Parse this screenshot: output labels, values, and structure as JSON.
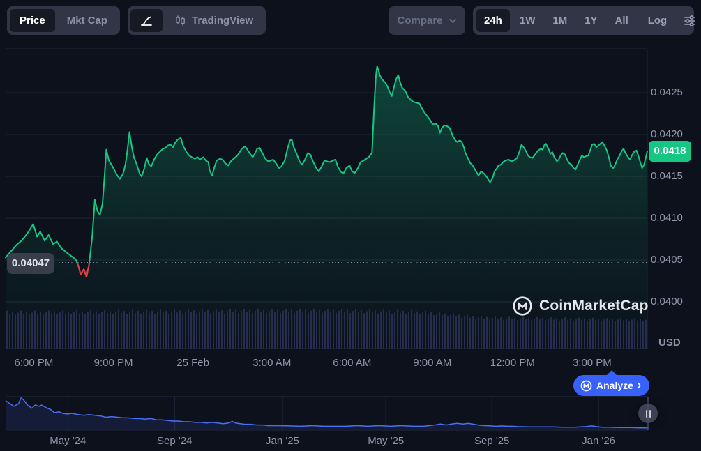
{
  "toolbar": {
    "price_label": "Price",
    "mktcap_label": "Mkt Cap",
    "tradingview_label": "TradingView",
    "compare_label": "Compare",
    "ranges": [
      "24h",
      "1W",
      "1M",
      "1Y",
      "All"
    ],
    "active_range": "24h",
    "log_label": "Log"
  },
  "watermark": {
    "text": "CoinMarketCap"
  },
  "analyze": {
    "label": "Analyze",
    "chevron": "›"
  },
  "chart_data": {
    "type": "line",
    "title": "24h price chart",
    "currency": "USD",
    "line_color": "#16c784",
    "down_color": "#ea3943",
    "grid_color": "#1d2536",
    "ylim": [
      0.039442,
      0.043025
    ],
    "prev_close": 0.04047,
    "prev_close_label": "0.04047",
    "last_price": 0.0418,
    "last_price_label": "0.0418",
    "y_ticks": [
      {
        "label": "0.0425",
        "value": 0.0425
      },
      {
        "label": "0.0420",
        "value": 0.042
      },
      {
        "label": "0.0415",
        "value": 0.0415
      },
      {
        "label": "0.0410",
        "value": 0.041
      },
      {
        "label": "0.0405",
        "value": 0.0405
      },
      {
        "label": "0.0400",
        "value": 0.04
      }
    ],
    "x_ticks": [
      {
        "label": "6:00 PM",
        "f": 0.044
      },
      {
        "label": "9:00 PM",
        "f": 0.168
      },
      {
        "label": "25 Feb",
        "f": 0.292
      },
      {
        "label": "3:00 AM",
        "f": 0.415
      },
      {
        "label": "6:00 AM",
        "f": 0.54
      },
      {
        "label": "9:00 AM",
        "f": 0.665
      },
      {
        "label": "12:00 PM",
        "f": 0.79
      },
      {
        "label": "3:00 PM",
        "f": 0.914
      }
    ],
    "points": [
      [
        0.0,
        0.04053
      ],
      [
        0.009,
        0.04061
      ],
      [
        0.017,
        0.04068
      ],
      [
        0.026,
        0.04074
      ],
      [
        0.035,
        0.04083
      ],
      [
        0.043,
        0.04093
      ],
      [
        0.049,
        0.04078
      ],
      [
        0.054,
        0.04084
      ],
      [
        0.061,
        0.04073
      ],
      [
        0.067,
        0.0408
      ],
      [
        0.074,
        0.04069
      ],
      [
        0.08,
        0.04072
      ],
      [
        0.087,
        0.04064
      ],
      [
        0.095,
        0.04059
      ],
      [
        0.102,
        0.04055
      ],
      [
        0.109,
        0.04051
      ],
      [
        0.113,
        0.04044
      ],
      [
        0.117,
        0.04033
      ],
      [
        0.122,
        0.04039
      ],
      [
        0.126,
        0.0403
      ],
      [
        0.13,
        0.04044
      ],
      [
        0.135,
        0.04078
      ],
      [
        0.139,
        0.04122
      ],
      [
        0.143,
        0.04109
      ],
      [
        0.147,
        0.04104
      ],
      [
        0.151,
        0.04117
      ],
      [
        0.154,
        0.04148
      ],
      [
        0.157,
        0.04182
      ],
      [
        0.161,
        0.04169
      ],
      [
        0.165,
        0.04164
      ],
      [
        0.17,
        0.04157
      ],
      [
        0.174,
        0.04151
      ],
      [
        0.178,
        0.04147
      ],
      [
        0.183,
        0.04153
      ],
      [
        0.187,
        0.04165
      ],
      [
        0.19,
        0.04182
      ],
      [
        0.193,
        0.04203
      ],
      [
        0.197,
        0.04184
      ],
      [
        0.2,
        0.04173
      ],
      [
        0.204,
        0.04165
      ],
      [
        0.209,
        0.04153
      ],
      [
        0.212,
        0.0415
      ],
      [
        0.216,
        0.04159
      ],
      [
        0.22,
        0.04172
      ],
      [
        0.223,
        0.04165
      ],
      [
        0.227,
        0.04162
      ],
      [
        0.232,
        0.04171
      ],
      [
        0.236,
        0.04176
      ],
      [
        0.24,
        0.04179
      ],
      [
        0.245,
        0.04183
      ],
      [
        0.249,
        0.04184
      ],
      [
        0.253,
        0.04187
      ],
      [
        0.257,
        0.04188
      ],
      [
        0.261,
        0.04185
      ],
      [
        0.264,
        0.0419
      ],
      [
        0.268,
        0.04194
      ],
      [
        0.273,
        0.04196
      ],
      [
        0.277,
        0.04186
      ],
      [
        0.282,
        0.04179
      ],
      [
        0.286,
        0.04175
      ],
      [
        0.29,
        0.04173
      ],
      [
        0.295,
        0.04171
      ],
      [
        0.299,
        0.04173
      ],
      [
        0.303,
        0.0417
      ],
      [
        0.308,
        0.04173
      ],
      [
        0.312,
        0.04169
      ],
      [
        0.316,
        0.04167
      ],
      [
        0.318,
        0.04157
      ],
      [
        0.322,
        0.04151
      ],
      [
        0.325,
        0.0416
      ],
      [
        0.329,
        0.04169
      ],
      [
        0.334,
        0.04171
      ],
      [
        0.338,
        0.0417
      ],
      [
        0.342,
        0.04166
      ],
      [
        0.347,
        0.04163
      ],
      [
        0.351,
        0.04168
      ],
      [
        0.355,
        0.04171
      ],
      [
        0.36,
        0.04174
      ],
      [
        0.364,
        0.04178
      ],
      [
        0.368,
        0.04183
      ],
      [
        0.373,
        0.04186
      ],
      [
        0.376,
        0.04183
      ],
      [
        0.38,
        0.04178
      ],
      [
        0.385,
        0.04173
      ],
      [
        0.389,
        0.04178
      ],
      [
        0.392,
        0.04183
      ],
      [
        0.396,
        0.04184
      ],
      [
        0.4,
        0.04178
      ],
      [
        0.404,
        0.04172
      ],
      [
        0.409,
        0.04168
      ],
      [
        0.413,
        0.04169
      ],
      [
        0.417,
        0.0417
      ],
      [
        0.422,
        0.04165
      ],
      [
        0.426,
        0.0416
      ],
      [
        0.43,
        0.04162
      ],
      [
        0.435,
        0.04169
      ],
      [
        0.439,
        0.04182
      ],
      [
        0.443,
        0.04193
      ],
      [
        0.446,
        0.04194
      ],
      [
        0.449,
        0.04185
      ],
      [
        0.453,
        0.04178
      ],
      [
        0.458,
        0.04168
      ],
      [
        0.462,
        0.04164
      ],
      [
        0.466,
        0.04169
      ],
      [
        0.471,
        0.04178
      ],
      [
        0.475,
        0.04176
      ],
      [
        0.479,
        0.04168
      ],
      [
        0.484,
        0.0416
      ],
      [
        0.488,
        0.04156
      ],
      [
        0.492,
        0.04161
      ],
      [
        0.497,
        0.04169
      ],
      [
        0.501,
        0.04168
      ],
      [
        0.505,
        0.04167
      ],
      [
        0.51,
        0.04169
      ],
      [
        0.514,
        0.0417
      ],
      [
        0.518,
        0.04161
      ],
      [
        0.523,
        0.04155
      ],
      [
        0.527,
        0.04154
      ],
      [
        0.531,
        0.0416
      ],
      [
        0.536,
        0.04163
      ],
      [
        0.54,
        0.04156
      ],
      [
        0.544,
        0.04154
      ],
      [
        0.549,
        0.0416
      ],
      [
        0.553,
        0.04167
      ],
      [
        0.558,
        0.04169
      ],
      [
        0.562,
        0.04171
      ],
      [
        0.566,
        0.04173
      ],
      [
        0.571,
        0.04178
      ],
      [
        0.574,
        0.04228
      ],
      [
        0.577,
        0.04269
      ],
      [
        0.579,
        0.04282
      ],
      [
        0.583,
        0.04271
      ],
      [
        0.586,
        0.04267
      ],
      [
        0.589,
        0.04264
      ],
      [
        0.592,
        0.04262
      ],
      [
        0.596,
        0.04256
      ],
      [
        0.599,
        0.0425
      ],
      [
        0.602,
        0.04246
      ],
      [
        0.605,
        0.04256
      ],
      [
        0.609,
        0.04267
      ],
      [
        0.612,
        0.04271
      ],
      [
        0.615,
        0.04262
      ],
      [
        0.618,
        0.04256
      ],
      [
        0.623,
        0.04252
      ],
      [
        0.627,
        0.04245
      ],
      [
        0.632,
        0.04241
      ],
      [
        0.636,
        0.04239
      ],
      [
        0.64,
        0.04238
      ],
      [
        0.645,
        0.04237
      ],
      [
        0.649,
        0.04231
      ],
      [
        0.653,
        0.04226
      ],
      [
        0.658,
        0.04221
      ],
      [
        0.661,
        0.04218
      ],
      [
        0.664,
        0.04214
      ],
      [
        0.667,
        0.04212
      ],
      [
        0.671,
        0.04213
      ],
      [
        0.674,
        0.0421
      ],
      [
        0.677,
        0.04202
      ],
      [
        0.68,
        0.04208
      ],
      [
        0.684,
        0.04211
      ],
      [
        0.688,
        0.0421
      ],
      [
        0.692,
        0.04208
      ],
      [
        0.697,
        0.04198
      ],
      [
        0.701,
        0.04193
      ],
      [
        0.704,
        0.04191
      ],
      [
        0.708,
        0.04193
      ],
      [
        0.711,
        0.04191
      ],
      [
        0.714,
        0.04185
      ],
      [
        0.717,
        0.04177
      ],
      [
        0.721,
        0.04171
      ],
      [
        0.724,
        0.04166
      ],
      [
        0.728,
        0.04163
      ],
      [
        0.733,
        0.04156
      ],
      [
        0.737,
        0.04151
      ],
      [
        0.741,
        0.04156
      ],
      [
        0.746,
        0.04153
      ],
      [
        0.75,
        0.04149
      ],
      [
        0.753,
        0.04145
      ],
      [
        0.755,
        0.04143
      ],
      [
        0.759,
        0.04148
      ],
      [
        0.762,
        0.04156
      ],
      [
        0.765,
        0.04159
      ],
      [
        0.768,
        0.04163
      ],
      [
        0.772,
        0.04164
      ],
      [
        0.775,
        0.04167
      ],
      [
        0.779,
        0.04169
      ],
      [
        0.784,
        0.0417
      ],
      [
        0.788,
        0.04168
      ],
      [
        0.792,
        0.04169
      ],
      [
        0.797,
        0.04172
      ],
      [
        0.801,
        0.0418
      ],
      [
        0.804,
        0.04188
      ],
      [
        0.808,
        0.04184
      ],
      [
        0.811,
        0.0418
      ],
      [
        0.814,
        0.04175
      ],
      [
        0.817,
        0.04173
      ],
      [
        0.821,
        0.04172
      ],
      [
        0.824,
        0.04175
      ],
      [
        0.827,
        0.04178
      ],
      [
        0.83,
        0.04181
      ],
      [
        0.834,
        0.04183
      ],
      [
        0.837,
        0.04182
      ],
      [
        0.84,
        0.04188
      ],
      [
        0.842,
        0.04189
      ],
      [
        0.846,
        0.04183
      ],
      [
        0.849,
        0.04177
      ],
      [
        0.852,
        0.04179
      ],
      [
        0.855,
        0.04173
      ],
      [
        0.859,
        0.04168
      ],
      [
        0.862,
        0.0417
      ],
      [
        0.865,
        0.04175
      ],
      [
        0.868,
        0.04178
      ],
      [
        0.872,
        0.04176
      ],
      [
        0.875,
        0.0417
      ],
      [
        0.878,
        0.04166
      ],
      [
        0.882,
        0.04164
      ],
      [
        0.885,
        0.0416
      ],
      [
        0.888,
        0.04158
      ],
      [
        0.891,
        0.04163
      ],
      [
        0.895,
        0.0417
      ],
      [
        0.898,
        0.04175
      ],
      [
        0.901,
        0.04173
      ],
      [
        0.904,
        0.04174
      ],
      [
        0.908,
        0.04175
      ],
      [
        0.911,
        0.04181
      ],
      [
        0.914,
        0.04188
      ],
      [
        0.917,
        0.04189
      ],
      [
        0.921,
        0.04185
      ],
      [
        0.924,
        0.04187
      ],
      [
        0.927,
        0.04189
      ],
      [
        0.93,
        0.04191
      ],
      [
        0.933,
        0.04187
      ],
      [
        0.937,
        0.04181
      ],
      [
        0.94,
        0.04173
      ],
      [
        0.943,
        0.04163
      ],
      [
        0.947,
        0.0416
      ],
      [
        0.95,
        0.04164
      ],
      [
        0.953,
        0.0417
      ],
      [
        0.957,
        0.04175
      ],
      [
        0.96,
        0.0418
      ],
      [
        0.963,
        0.04183
      ],
      [
        0.966,
        0.04178
      ],
      [
        0.97,
        0.04173
      ],
      [
        0.973,
        0.0417
      ],
      [
        0.976,
        0.04175
      ],
      [
        0.979,
        0.04179
      ],
      [
        0.983,
        0.04181
      ],
      [
        0.986,
        0.04175
      ],
      [
        0.989,
        0.04167
      ],
      [
        0.992,
        0.0416
      ],
      [
        0.995,
        0.04164
      ],
      [
        1.0,
        0.0418
      ]
    ],
    "volume_envelope": [
      [
        0,
        0.95
      ],
      [
        0.1,
        0.96
      ],
      [
        0.2,
        0.97
      ],
      [
        0.3,
        0.985
      ],
      [
        0.42,
        1.0
      ],
      [
        0.52,
        1.0
      ],
      [
        0.6,
        0.98
      ],
      [
        0.66,
        0.95
      ],
      [
        0.7,
        0.88
      ],
      [
        0.74,
        0.82
      ],
      [
        0.78,
        0.8
      ],
      [
        0.84,
        0.79
      ],
      [
        0.9,
        0.78
      ],
      [
        1,
        0.76
      ]
    ]
  },
  "navigator": {
    "line_color": "#4a6ff3",
    "x_ticks": [
      {
        "label": "May '24",
        "f": 0.097
      },
      {
        "label": "Sep '24",
        "f": 0.263
      },
      {
        "label": "Jan '25",
        "f": 0.431
      },
      {
        "label": "May '25",
        "f": 0.592
      },
      {
        "label": "Sep '25",
        "f": 0.757
      },
      {
        "label": "Jan '26",
        "f": 0.923
      }
    ],
    "points": [
      [
        0.0,
        0.9
      ],
      [
        0.007,
        0.8
      ],
      [
        0.013,
        0.72
      ],
      [
        0.02,
        0.8
      ],
      [
        0.024,
        0.98
      ],
      [
        0.028,
        0.92
      ],
      [
        0.035,
        0.74
      ],
      [
        0.041,
        0.66
      ],
      [
        0.046,
        0.76
      ],
      [
        0.052,
        0.72
      ],
      [
        0.056,
        0.76
      ],
      [
        0.063,
        0.68
      ],
      [
        0.07,
        0.62
      ],
      [
        0.076,
        0.52
      ],
      [
        0.083,
        0.55
      ],
      [
        0.089,
        0.5
      ],
      [
        0.096,
        0.48
      ],
      [
        0.104,
        0.5
      ],
      [
        0.113,
        0.46
      ],
      [
        0.122,
        0.44
      ],
      [
        0.13,
        0.46
      ],
      [
        0.139,
        0.44
      ],
      [
        0.148,
        0.42
      ],
      [
        0.156,
        0.38
      ],
      [
        0.165,
        0.4
      ],
      [
        0.174,
        0.38
      ],
      [
        0.182,
        0.36
      ],
      [
        0.191,
        0.36
      ],
      [
        0.2,
        0.34
      ],
      [
        0.209,
        0.34
      ],
      [
        0.217,
        0.32
      ],
      [
        0.226,
        0.34
      ],
      [
        0.235,
        0.3
      ],
      [
        0.243,
        0.3
      ],
      [
        0.252,
        0.28
      ],
      [
        0.261,
        0.26
      ],
      [
        0.269,
        0.26
      ],
      [
        0.278,
        0.24
      ],
      [
        0.287,
        0.24
      ],
      [
        0.295,
        0.22
      ],
      [
        0.304,
        0.22
      ],
      [
        0.313,
        0.2
      ],
      [
        0.321,
        0.22
      ],
      [
        0.33,
        0.2
      ],
      [
        0.339,
        0.18
      ],
      [
        0.347,
        0.2
      ],
      [
        0.353,
        0.25
      ],
      [
        0.358,
        0.2
      ],
      [
        0.365,
        0.18
      ],
      [
        0.373,
        0.16
      ],
      [
        0.382,
        0.16
      ],
      [
        0.391,
        0.14
      ],
      [
        0.4,
        0.14
      ],
      [
        0.408,
        0.12
      ],
      [
        0.417,
        0.12
      ],
      [
        0.426,
        0.12
      ],
      [
        0.443,
        0.11
      ],
      [
        0.46,
        0.1
      ],
      [
        0.478,
        0.12
      ],
      [
        0.495,
        0.1
      ],
      [
        0.512,
        0.1
      ],
      [
        0.53,
        0.1
      ],
      [
        0.547,
        0.12
      ],
      [
        0.564,
        0.1
      ],
      [
        0.582,
        0.12
      ],
      [
        0.599,
        0.1
      ],
      [
        0.616,
        0.12
      ],
      [
        0.634,
        0.1
      ],
      [
        0.651,
        0.1
      ],
      [
        0.668,
        0.14
      ],
      [
        0.677,
        0.17
      ],
      [
        0.686,
        0.14
      ],
      [
        0.694,
        0.17
      ],
      [
        0.703,
        0.19
      ],
      [
        0.712,
        0.17
      ],
      [
        0.72,
        0.19
      ],
      [
        0.729,
        0.16
      ],
      [
        0.738,
        0.13
      ],
      [
        0.746,
        0.12
      ],
      [
        0.755,
        0.11
      ],
      [
        0.764,
        0.1
      ],
      [
        0.772,
        0.11
      ],
      [
        0.781,
        0.1
      ],
      [
        0.79,
        0.1
      ],
      [
        0.798,
        0.09
      ],
      [
        0.816,
        0.08
      ],
      [
        0.833,
        0.08
      ],
      [
        0.851,
        0.08
      ],
      [
        0.868,
        0.07
      ],
      [
        0.885,
        0.07
      ],
      [
        0.903,
        0.09
      ],
      [
        0.912,
        0.11
      ],
      [
        0.92,
        0.09
      ],
      [
        0.929,
        0.07
      ],
      [
        0.938,
        0.07
      ],
      [
        0.955,
        0.06
      ],
      [
        0.972,
        0.06
      ],
      [
        0.99,
        0.05
      ],
      [
        1.0,
        0.05
      ]
    ]
  }
}
